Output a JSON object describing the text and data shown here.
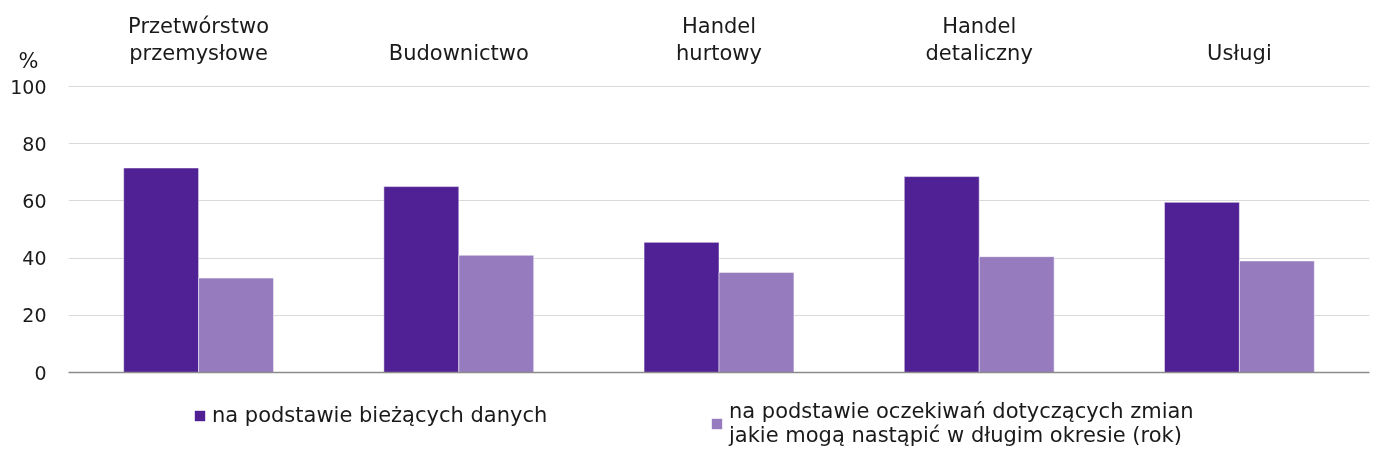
{
  "chart_data": {
    "type": "bar",
    "ylabel": "%",
    "categories": [
      "Przetwórstwo przemysłowe",
      "Budownictwo",
      "Handel hurtowy",
      "Handel detaliczny",
      "Usługi"
    ],
    "series": [
      {
        "name": "na podstawie bieżących danych",
        "color": "#502194",
        "values": [
          71.5,
          65,
          45.5,
          68.5,
          59.5
        ]
      },
      {
        "name": "na podstawie oczekiwań dotyczących zmian jakie mogą nastąpić w długim okresie (rok)",
        "color": "#967cbf",
        "values": [
          33,
          41,
          35,
          40.5,
          39
        ]
      }
    ],
    "ylim": [
      0,
      100
    ],
    "yticks": [
      0,
      20,
      40,
      60,
      80,
      100
    ],
    "grid": "y",
    "legend": "bottom"
  }
}
